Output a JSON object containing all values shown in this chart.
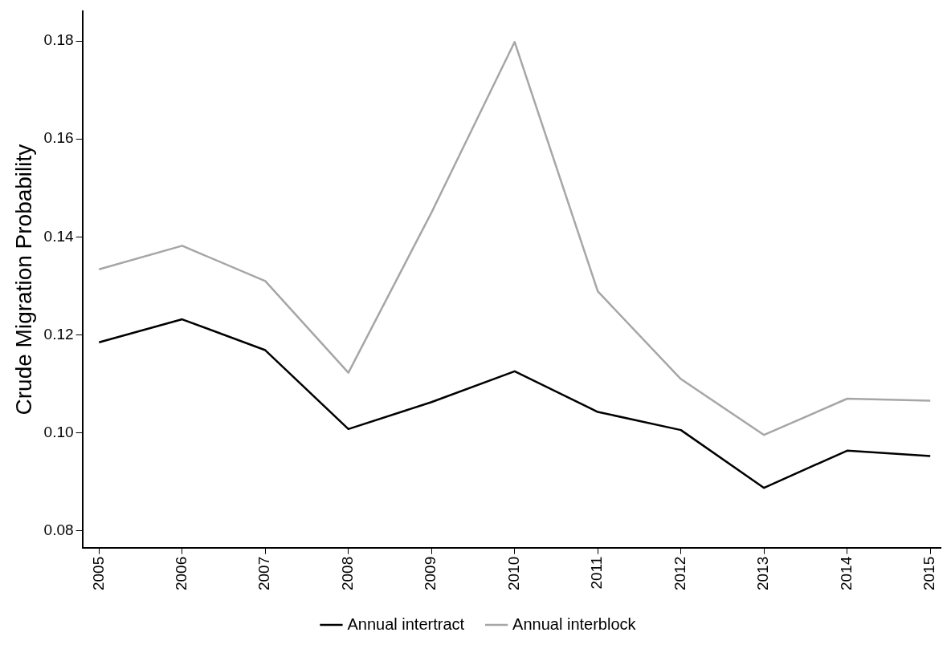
{
  "chart_data": {
    "type": "line",
    "ylabel": "Crude Migration Probability",
    "x": [
      2005,
      2006,
      2007,
      2008,
      2009,
      2010,
      2011,
      2012,
      2013,
      2014,
      2015
    ],
    "xlim": [
      2004.8,
      2015.13
    ],
    "xticks": [
      2005,
      2006,
      2007,
      2008,
      2009,
      2010,
      2011,
      2012,
      2013,
      2014,
      2015
    ],
    "ylim": [
      0.0766,
      0.186
    ],
    "yticks": [
      {
        "value": 0.08,
        "label": "0.08"
      },
      {
        "value": 0.1,
        "label": "0.10"
      },
      {
        "value": 0.12,
        "label": "0.12"
      },
      {
        "value": 0.14,
        "label": "0.14"
      },
      {
        "value": 0.16,
        "label": "0.16"
      },
      {
        "value": 0.18,
        "label": "0.18"
      }
    ],
    "series": [
      {
        "name": "Annual intertract",
        "color": "#000000",
        "values": [
          0.1185,
          0.1232,
          0.1169,
          0.1008,
          0.1063,
          0.1126,
          0.1043,
          0.1006,
          0.0888,
          0.0964,
          0.0953
        ]
      },
      {
        "name": "Annual interblock",
        "color": "#a6a6a6",
        "values": [
          0.1334,
          0.1382,
          0.131,
          0.1123,
          0.145,
          0.1798,
          0.1289,
          0.111,
          0.0996,
          0.107,
          0.1066
        ]
      }
    ],
    "grid": false,
    "legend": "bottom",
    "marker": "none",
    "line_style": "solid"
  }
}
